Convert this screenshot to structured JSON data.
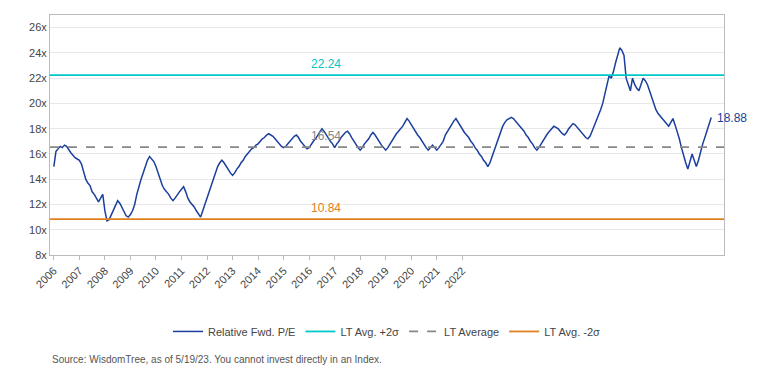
{
  "chart_data": {
    "type": "line",
    "source": "Source: WisdomTree, as of 5/19/23. You cannot invest directly in an Index.",
    "x": [
      2006,
      2006.0833,
      2006.1667,
      2006.25,
      2006.3333,
      2006.4167,
      2006.5,
      2006.5833,
      2006.6667,
      2006.75,
      2006.8333,
      2006.9167,
      2007,
      2007.0833,
      2007.1667,
      2007.25,
      2007.3333,
      2007.4167,
      2007.5,
      2007.5833,
      2007.6667,
      2007.75,
      2007.8333,
      2007.9167,
      2008,
      2008.0833,
      2008.1667,
      2008.25,
      2008.3333,
      2008.4167,
      2008.5,
      2008.5833,
      2008.6667,
      2008.75,
      2008.8333,
      2008.9167,
      2009,
      2009.0833,
      2009.1667,
      2009.25,
      2009.3333,
      2009.4167,
      2009.5,
      2009.5833,
      2009.6667,
      2009.75,
      2009.8333,
      2009.9167,
      2010,
      2010.0833,
      2010.1667,
      2010.25,
      2010.3333,
      2010.4167,
      2010.5,
      2010.5833,
      2010.6667,
      2010.75,
      2010.8333,
      2010.9167,
      2011,
      2011.0833,
      2011.1667,
      2011.25,
      2011.3333,
      2011.4167,
      2011.5,
      2011.5833,
      2011.6667,
      2011.75,
      2011.8333,
      2011.9167,
      2012,
      2012.0833,
      2012.1667,
      2012.25,
      2012.3333,
      2012.4167,
      2012.5,
      2012.5833,
      2012.6667,
      2012.75,
      2012.8333,
      2012.9167,
      2013,
      2013.0833,
      2013.1667,
      2013.25,
      2013.3333,
      2013.4167,
      2013.5,
      2013.5833,
      2013.6667,
      2013.75,
      2013.8333,
      2013.9167,
      2014,
      2014.0833,
      2014.1667,
      2014.25,
      2014.3333,
      2014.4167,
      2014.5,
      2014.5833,
      2014.6667,
      2014.75,
      2014.8333,
      2014.9167,
      2015,
      2015.0833,
      2015.1667,
      2015.25,
      2015.3333,
      2015.4167,
      2015.5,
      2015.5833,
      2015.6667,
      2015.75,
      2015.8333,
      2015.9167,
      2016,
      2016.0833,
      2016.1667,
      2016.25,
      2016.3333,
      2016.4167,
      2016.5,
      2016.5833,
      2016.6667,
      2016.75,
      2016.8333,
      2016.9167,
      2017,
      2017.0833,
      2017.1667,
      2017.25,
      2017.3333,
      2017.4167,
      2017.5,
      2017.5833,
      2017.6667,
      2017.75,
      2017.8333,
      2017.9167,
      2018,
      2018.0833,
      2018.1667,
      2018.25,
      2018.3333,
      2018.4167,
      2018.5,
      2018.5833,
      2018.6667,
      2018.75,
      2018.8333,
      2018.9167,
      2019,
      2019.0833,
      2019.1667,
      2019.25,
      2019.3333,
      2019.4167,
      2019.5,
      2019.5833,
      2019.6667,
      2019.75,
      2019.8333,
      2019.9167,
      2020,
      2020.0833,
      2020.1667,
      2020.25,
      2020.3333,
      2020.4167,
      2020.5,
      2020.5833,
      2020.6667,
      2020.75,
      2020.8333,
      2020.9167,
      2021,
      2021.0833,
      2021.1667,
      2021.25,
      2021.3333,
      2021.4167,
      2021.5,
      2021.5833,
      2021.6667,
      2021.75,
      2021.8333,
      2021.9167,
      2022,
      2022.0833,
      2022.1667,
      2022.25,
      2022.3333,
      2022.4167,
      2022.5,
      2022.5833,
      2022.6667,
      2022.75,
      2022.8333,
      2022.9167,
      2023,
      2023.0833,
      2023.1667,
      2023.25,
      2023.3333,
      2023.4167,
      2023.5,
      2023.5833,
      2023.6667,
      2023.75,
      2023.8333,
      2023.9167,
      2024,
      2024.0833,
      2024.1667,
      2024.25,
      2024.3333,
      2024.4167,
      2024.5,
      2024.5833,
      2024.6667,
      2024.75,
      2024.8333,
      2024.9167,
      2025,
      2025.0833,
      2025.1667,
      2025.25,
      2025.3333,
      2025.4167,
      2025.5,
      2025.5833,
      2025.6667,
      2025.75,
      2025.8333,
      2025.9167,
      2026,
      2026.0833,
      2026.1667,
      2026.25,
      2026.3333,
      2026.4167,
      2026.5,
      2026.5833,
      2026.6667,
      2026.75,
      2026.8333,
      2026.9167,
      2027,
      2027.0833,
      2027.1667,
      2027.25,
      2027.3333,
      2027.4167,
      2027.5,
      2027.5833,
      2027.6667,
      2027.75,
      2027.8333,
      2027.9167,
      2028,
      2028.0833,
      2028.1667,
      2028.25,
      2028.3333,
      2028.4167,
      2028.5,
      2028.5833,
      2028.6667,
      2028.75,
      2028.8333,
      2028.9167,
      2029,
      2029.0833,
      2029.1667,
      2029.25,
      2029.3333,
      2029.4167,
      2029.5,
      2029.5833,
      2029.6667,
      2029.75,
      2029.8333,
      2029.9167,
      2030,
      2030.0833,
      2030.1667,
      2030.25,
      2030.3333,
      2030.4167,
      2030.5,
      2030.5833,
      2030.6667,
      2030.75,
      2030.8333,
      2030.9167,
      2031,
      2031.0833,
      2031.1667,
      2031.25,
      2031.3333,
      2031.4167,
      2031.5,
      2031.5833,
      2031.6667,
      2031.75
    ],
    "series": [
      {
        "name": "Relative Fwd. P/E",
        "color": "#1a3f9c",
        "line_style": "solid",
        "values": [
          15.0,
          16.2,
          16.4,
          16.6,
          16.5,
          16.7,
          16.6,
          16.3,
          16.1,
          15.9,
          15.7,
          15.6,
          15.5,
          15.2,
          14.5,
          14.0,
          13.7,
          13.5,
          13.0,
          12.8,
          12.5,
          12.2,
          12.5,
          12.8,
          11.5,
          10.7,
          10.8,
          11.2,
          11.5,
          12.0,
          12.3,
          12.1,
          11.8,
          11.4,
          11.1,
          11.0,
          11.2,
          11.5,
          12.0,
          12.8,
          13.5,
          14.0,
          14.5,
          15.0,
          15.5,
          15.8,
          15.6,
          15.4,
          15.0,
          14.5,
          14.0,
          13.5,
          13.2,
          13.0,
          12.8,
          12.5,
          12.3,
          12.5,
          12.8,
          13.0,
          13.2,
          13.4,
          13.0,
          12.5,
          12.2,
          12.0,
          11.8,
          11.5,
          11.2,
          11.0,
          11.5,
          12.0,
          12.5,
          13.0,
          13.5,
          14.0,
          14.5,
          15.0,
          15.3,
          15.5,
          15.3,
          15.0,
          14.8,
          14.5,
          14.3,
          14.5,
          14.8,
          15.0,
          15.3,
          15.5,
          15.8,
          16.0,
          16.2,
          16.4,
          16.5,
          16.7,
          16.8,
          17.0,
          17.2,
          17.3,
          17.5,
          17.6,
          17.5,
          17.4,
          17.2,
          17.0,
          16.8,
          16.6,
          16.5,
          16.6,
          16.8,
          17.0,
          17.2,
          17.4,
          17.5,
          17.3,
          17.0,
          16.8,
          16.6,
          16.4,
          16.5,
          16.8,
          17.0,
          17.2,
          17.5,
          17.8,
          18.0,
          17.8,
          17.5,
          17.3,
          17.0,
          16.8,
          16.5,
          16.8,
          17.0,
          17.3,
          17.5,
          17.7,
          17.8,
          17.6,
          17.3,
          17.0,
          16.8,
          16.5,
          16.3,
          16.5,
          16.8,
          17.0,
          17.2,
          17.5,
          17.7,
          17.5,
          17.2,
          17.0,
          16.7,
          16.5,
          16.3,
          16.5,
          16.8,
          17.0,
          17.3,
          17.6,
          17.8,
          18.0,
          18.2,
          18.5,
          18.8,
          18.6,
          18.3,
          18.0,
          17.7,
          17.5,
          17.3,
          17.0,
          16.7,
          16.5,
          16.3,
          16.5,
          16.7,
          16.5,
          16.3,
          16.5,
          16.8,
          17.0,
          17.5,
          17.8,
          18.0,
          18.3,
          18.6,
          18.8,
          18.5,
          18.3,
          18.0,
          17.7,
          17.5,
          17.3,
          17.0,
          16.8,
          16.5,
          16.3,
          16.0,
          15.8,
          15.5,
          15.3,
          15.0,
          15.3,
          15.8,
          16.3,
          16.8,
          17.3,
          17.8,
          18.2,
          18.5,
          18.7,
          18.8,
          18.9,
          18.8,
          18.6,
          18.4,
          18.2,
          18.0,
          17.8,
          17.5,
          17.3,
          17.0,
          16.8,
          16.5,
          16.3,
          16.5,
          16.8,
          17.0,
          17.3,
          17.6,
          17.8,
          18.0,
          18.2,
          18.1,
          18.0,
          17.8,
          17.6,
          17.5,
          17.7,
          18.0,
          18.2,
          18.4,
          18.3,
          18.1,
          17.9,
          17.7,
          17.5,
          17.3,
          17.2,
          17.4,
          17.8,
          18.2,
          18.6,
          19.0,
          19.5,
          20.0,
          20.8,
          21.5,
          22.2,
          22.0,
          22.5,
          23.2,
          23.8,
          24.4,
          24.2,
          23.8,
          22.0,
          21.5,
          21.0,
          22.0,
          21.5,
          21.2,
          21.0,
          21.5,
          22.0,
          21.8,
          21.5,
          21.0,
          20.5,
          20.0,
          19.5,
          19.2,
          19.0,
          18.8,
          18.6,
          18.4,
          18.2,
          18.5,
          18.8,
          18.3,
          17.8,
          17.2,
          16.5,
          15.8,
          15.3,
          14.8,
          15.5,
          16.0,
          15.5,
          15.0,
          15.5,
          16.2,
          16.8,
          17.3,
          17.8,
          18.3,
          18.88
        ]
      },
      {
        "name": "LT Avg. +2σ",
        "type": "hline",
        "value": 22.24,
        "color": "#00c8c8",
        "line_style": "solid"
      },
      {
        "name": "LT Average",
        "type": "hline",
        "value": 16.54,
        "color": "#888888",
        "line_style": "dashed"
      },
      {
        "name": "LT Avg. -2σ",
        "type": "hline",
        "value": 10.84,
        "color": "#e08020",
        "line_style": "solid"
      }
    ],
    "annotations": [
      {
        "text": "22.24",
        "x": 2016,
        "y": 22.24,
        "color": "#00c8c8"
      },
      {
        "text": "16.54",
        "x": 2016,
        "y": 16.54,
        "color": "#888888"
      },
      {
        "text": "10.84",
        "x": 2016,
        "y": 10.84,
        "color": "#e08020"
      },
      {
        "text": "18.88",
        "x": 2031.75,
        "y": 18.88,
        "color": "#1a3f9c"
      }
    ],
    "xlim": [
      2005.85,
      2032.25
    ],
    "xticks": [
      2006,
      2007,
      2008,
      2009,
      2010,
      2011,
      2012,
      2013,
      2014,
      2015,
      2016,
      2017,
      2018,
      2019,
      2020,
      2021,
      2022
    ],
    "ylim": [
      8,
      27
    ],
    "yticks": [
      {
        "value": 8,
        "label": "8x"
      },
      {
        "value": 10,
        "label": "10x"
      },
      {
        "value": 12,
        "label": "12x"
      },
      {
        "value": 14,
        "label": "14x"
      },
      {
        "value": 16,
        "label": "16x"
      },
      {
        "value": 18,
        "label": "18x"
      },
      {
        "value": 20,
        "label": "20x"
      },
      {
        "value": 22,
        "label": "22x"
      },
      {
        "value": 24,
        "label": "24x"
      },
      {
        "value": 26,
        "label": "26x"
      }
    ],
    "grid": "y",
    "legend": "bottom"
  }
}
